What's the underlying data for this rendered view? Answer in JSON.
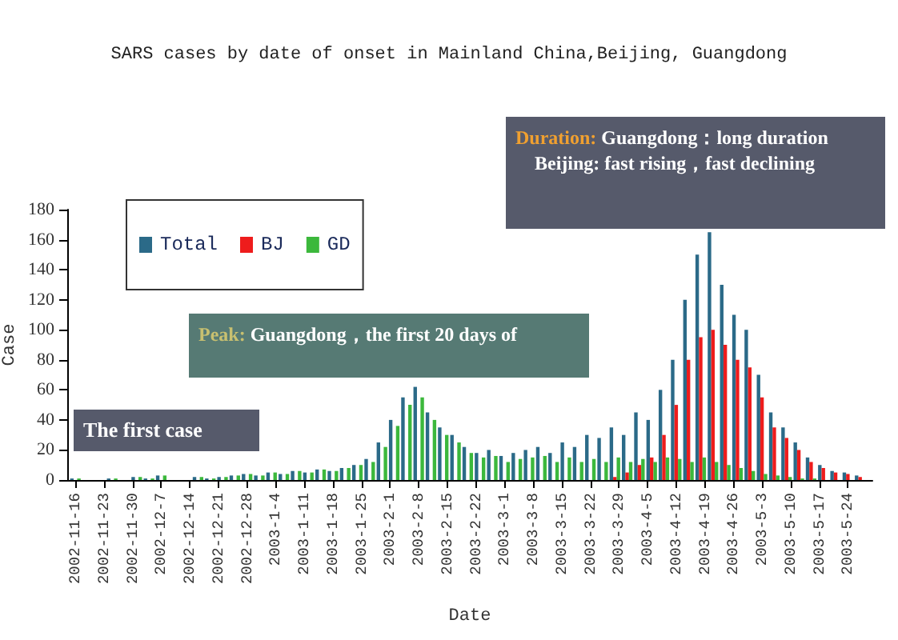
{
  "chart_data": {
    "type": "bar",
    "title": "SARS cases by date of onset in Mainland China,Beijing, Guangdong",
    "xlabel": "Date",
    "ylabel": "Case",
    "x": [
      "2002-11-16",
      "2002-11-19",
      "2002-11-22",
      "2002-11-25",
      "2002-11-28",
      "2002-12-01",
      "2002-12-04",
      "2002-12-07",
      "2002-12-10",
      "2002-12-13",
      "2002-12-16",
      "2002-12-19",
      "2002-12-22",
      "2002-12-25",
      "2002-12-28",
      "2002-12-31",
      "2003-01-03",
      "2003-01-06",
      "2003-01-09",
      "2003-01-12",
      "2003-01-15",
      "2003-01-18",
      "2003-01-21",
      "2003-01-24",
      "2003-01-27",
      "2003-01-30",
      "2003-02-02",
      "2003-02-05",
      "2003-02-08",
      "2003-02-11",
      "2003-02-14",
      "2003-02-17",
      "2003-02-20",
      "2003-02-23",
      "2003-02-26",
      "2003-03-01",
      "2003-03-04",
      "2003-03-07",
      "2003-03-10",
      "2003-03-13",
      "2003-03-16",
      "2003-03-19",
      "2003-03-22",
      "2003-03-25",
      "2003-03-28",
      "2003-03-31",
      "2003-04-03",
      "2003-04-06",
      "2003-04-09",
      "2003-04-12",
      "2003-04-15",
      "2003-04-18",
      "2003-04-21",
      "2003-04-24",
      "2003-04-27",
      "2003-04-30",
      "2003-05-03",
      "2003-05-06",
      "2003-05-09",
      "2003-05-12",
      "2003-05-15",
      "2003-05-18",
      "2003-05-21",
      "2003-05-24",
      "2003-05-27"
    ],
    "series": [
      {
        "name": "Total",
        "color": "#2b6a88",
        "values": [
          1,
          0,
          0,
          1,
          0,
          2,
          1,
          3,
          0,
          0,
          2,
          1,
          2,
          3,
          4,
          3,
          5,
          4,
          6,
          5,
          7,
          6,
          8,
          10,
          14,
          25,
          40,
          55,
          62,
          45,
          35,
          30,
          22,
          18,
          20,
          16,
          18,
          20,
          22,
          18,
          25,
          22,
          30,
          28,
          35,
          30,
          45,
          40,
          60,
          80,
          120,
          150,
          165,
          130,
          110,
          100,
          70,
          45,
          35,
          25,
          15,
          10,
          6,
          5,
          3
        ]
      },
      {
        "name": "BJ",
        "color": "#ee1c1c",
        "values": [
          0,
          0,
          0,
          0,
          0,
          0,
          0,
          0,
          0,
          0,
          0,
          0,
          0,
          0,
          0,
          0,
          0,
          0,
          0,
          0,
          0,
          0,
          0,
          0,
          0,
          0,
          0,
          0,
          0,
          0,
          0,
          0,
          0,
          0,
          0,
          0,
          0,
          0,
          0,
          0,
          0,
          0,
          0,
          0,
          2,
          5,
          10,
          15,
          30,
          50,
          80,
          95,
          100,
          90,
          80,
          75,
          55,
          35,
          28,
          20,
          12,
          8,
          5,
          4,
          2
        ]
      },
      {
        "name": "GD",
        "color": "#3cb83c",
        "values": [
          1,
          0,
          0,
          1,
          0,
          2,
          1,
          3,
          0,
          0,
          2,
          1,
          2,
          3,
          4,
          3,
          5,
          4,
          6,
          5,
          7,
          6,
          8,
          10,
          12,
          22,
          36,
          50,
          55,
          40,
          30,
          25,
          18,
          15,
          16,
          12,
          14,
          15,
          16,
          12,
          15,
          12,
          14,
          12,
          15,
          12,
          14,
          12,
          15,
          14,
          12,
          15,
          12,
          10,
          8,
          6,
          4,
          3,
          2,
          1,
          1,
          0,
          0,
          0,
          0
        ]
      }
    ],
    "xlim": [
      "2002-11-14",
      "2003-05-30"
    ],
    "xticks": [
      {
        "value": "2002-11-16",
        "label": "2002-11-16"
      },
      {
        "value": "2002-11-23",
        "label": "2002-11-23"
      },
      {
        "value": "2002-11-30",
        "label": "2002-11-30"
      },
      {
        "value": "2002-12-07",
        "label": "2002-12-7"
      },
      {
        "value": "2002-12-14",
        "label": "2002-12-14"
      },
      {
        "value": "2002-12-21",
        "label": "2002-12-21"
      },
      {
        "value": "2002-12-28",
        "label": "2002-12-28"
      },
      {
        "value": "2003-01-04",
        "label": "2003-1-4"
      },
      {
        "value": "2003-01-11",
        "label": "2003-1-11"
      },
      {
        "value": "2003-01-18",
        "label": "2003-1-18"
      },
      {
        "value": "2003-01-25",
        "label": "2003-1-25"
      },
      {
        "value": "2003-02-01",
        "label": "2003-2-1"
      },
      {
        "value": "2003-02-08",
        "label": "2003-2-8"
      },
      {
        "value": "2003-02-15",
        "label": "2003-2-15"
      },
      {
        "value": "2003-02-22",
        "label": "2003-2-22"
      },
      {
        "value": "2003-03-01",
        "label": "2003-3-1"
      },
      {
        "value": "2003-03-08",
        "label": "2003-3-8"
      },
      {
        "value": "2003-03-15",
        "label": "2003-3-15"
      },
      {
        "value": "2003-03-22",
        "label": "2003-3-22"
      },
      {
        "value": "2003-03-29",
        "label": "2003-3-29"
      },
      {
        "value": "2003-04-05",
        "label": "2003-4-5"
      },
      {
        "value": "2003-04-12",
        "label": "2003-4-12"
      },
      {
        "value": "2003-04-19",
        "label": "2003-4-19"
      },
      {
        "value": "2003-04-26",
        "label": "2003-4-26"
      },
      {
        "value": "2003-05-03",
        "label": "2003-5-3"
      },
      {
        "value": "2003-05-10",
        "label": "2003-5-10"
      },
      {
        "value": "2003-05-17",
        "label": "2003-5-17"
      },
      {
        "value": "2003-05-24",
        "label": "2003-5-24"
      }
    ],
    "ylim": [
      0,
      180
    ],
    "yticks": [
      0,
      20,
      40,
      60,
      80,
      100,
      120,
      140,
      160,
      180
    ],
    "grid": false,
    "legend": "top left",
    "annotations": [
      "Duration: Guangdong：long duration\nBeijing: fast rising，fast declining",
      "Peak: Guangdong，the first 20 days of",
      "The first case"
    ]
  }
}
